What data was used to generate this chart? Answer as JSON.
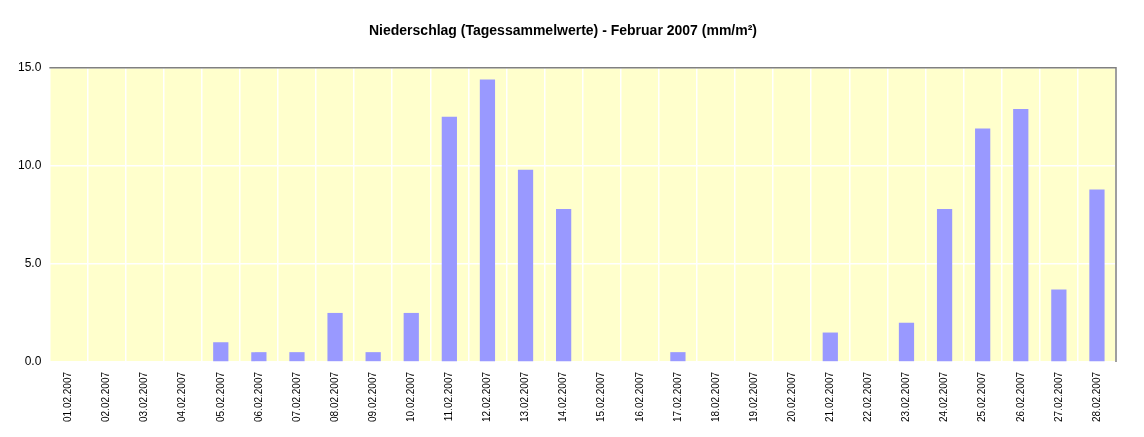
{
  "chart_data": {
    "type": "bar",
    "title": "Niederschlag (Tagessammelwerte) - Februar 2007 (mm/m²)",
    "categories": [
      "01.02.2007",
      "02.02.2007",
      "03.02.2007",
      "04.02.2007",
      "05.02.2007",
      "06.02.2007",
      "07.02.2007",
      "08.02.2007",
      "09.02.2007",
      "10.02.2007",
      "11.02.2007",
      "12.02.2007",
      "13.02.2007",
      "14.02.2007",
      "15.02.2007",
      "16.02.2007",
      "17.02.2007",
      "18.02.2007",
      "19.02.2007",
      "20.02.2007",
      "21.02.2007",
      "22.02.2007",
      "23.02.2007",
      "24.02.2007",
      "25.02.2007",
      "26.02.2007",
      "27.02.2007",
      "28.02.2007"
    ],
    "values": [
      0,
      0,
      0,
      0,
      1.0,
      0.5,
      0.5,
      2.5,
      0.5,
      2.5,
      12.5,
      14.4,
      9.8,
      7.8,
      0,
      0,
      0.5,
      0,
      0,
      0,
      1.5,
      0,
      2.0,
      7.8,
      11.9,
      12.9,
      3.7,
      8.8
    ],
    "color": "#9999ff",
    "ylim": [
      0,
      15
    ],
    "yticks": [
      {
        "value": 0,
        "label": "0.0"
      },
      {
        "value": 5,
        "label": "5.0"
      },
      {
        "value": 10,
        "label": "10.0"
      },
      {
        "value": 15,
        "label": "15.0"
      }
    ],
    "grid": true
  }
}
